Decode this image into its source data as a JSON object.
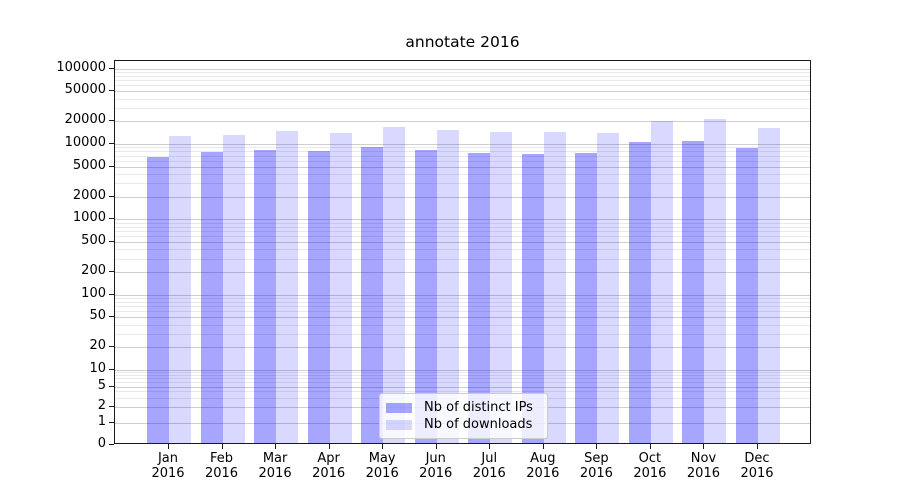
{
  "chart_data": {
    "type": "bar",
    "title": "annotate 2016",
    "categories": [
      "Jan",
      "Feb",
      "Mar",
      "Apr",
      "May",
      "Jun",
      "Jul",
      "Aug",
      "Sep",
      "Oct",
      "Nov",
      "Dec"
    ],
    "category_year": "2016",
    "series": [
      {
        "name": "Nb of distinct IPs",
        "color": "rgba(0,0,255,0.35)",
        "values": [
          6700,
          7800,
          8300,
          8100,
          9100,
          8300,
          7600,
          7400,
          7600,
          10600,
          11000,
          8900
        ]
      },
      {
        "name": "Nb of downloads",
        "color": "rgba(0,0,255,0.15)",
        "values": [
          12700,
          13200,
          14900,
          14200,
          16900,
          15400,
          14500,
          14400,
          14000,
          20000,
          21500,
          16300
        ]
      }
    ],
    "yscale": "symlog",
    "ylim": [
      0,
      126000
    ],
    "yticks": [
      0,
      1,
      2,
      5,
      10,
      20,
      50,
      100,
      200,
      500,
      1000,
      2000,
      5000,
      10000,
      20000,
      50000,
      100000
    ],
    "grid": "both",
    "grid_major_color": "#cfcfcf",
    "grid_minor_color": "#e9e9e9",
    "legend_position": "lower center"
  }
}
